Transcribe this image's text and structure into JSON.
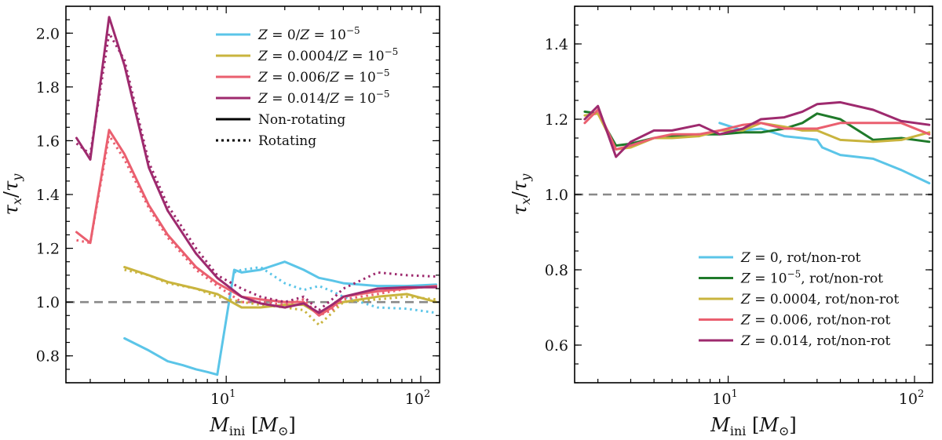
{
  "chart_data": [
    {
      "type": "line",
      "panel": "left",
      "xscale": "log",
      "xlim": [
        1.5,
        125
      ],
      "ylim": [
        0.7,
        2.1
      ],
      "xlabel": "M_ini [M_⊙]",
      "ylabel": "τ_x/τ_y",
      "xticks": [
        {
          "value": 10,
          "base": "10",
          "exp": "1"
        },
        {
          "value": 100,
          "base": "10",
          "exp": "2"
        }
      ],
      "yticks": [
        {
          "value": 0.8,
          "label": "0.8"
        },
        {
          "value": 1.0,
          "label": "1.0"
        },
        {
          "value": 1.2,
          "label": "1.2"
        },
        {
          "value": 1.4,
          "label": "1.4"
        },
        {
          "value": 1.6,
          "label": "1.6"
        },
        {
          "value": 1.8,
          "label": "1.8"
        },
        {
          "value": 2.0,
          "label": "2.0"
        }
      ],
      "reference_line": {
        "y": 1.0,
        "style": "dashed",
        "color": "#888888"
      },
      "legend": {
        "position": "top-right",
        "entries": [
          {
            "label": "Z = 0/Z = 10⁻⁵",
            "color": "#5bc5e8",
            "style": "solid"
          },
          {
            "label": "Z = 0.0004/Z = 10⁻⁵",
            "color": "#c9b43e",
            "style": "solid"
          },
          {
            "label": "Z = 0.006/Z = 10⁻⁵",
            "color": "#ea5f6f",
            "style": "solid"
          },
          {
            "label": "Z = 0.014/Z = 10⁻⁵",
            "color": "#9e2a6e",
            "style": "solid"
          },
          {
            "label": "Non-rotating",
            "color": "#000000",
            "style": "solid"
          },
          {
            "label": "Rotating",
            "color": "#000000",
            "style": "dotted"
          }
        ]
      },
      "series": [
        {
          "name": "Z=0 non-rot",
          "color": "#5bc5e8",
          "style": "solid",
          "x": [
            3,
            4,
            5,
            6,
            7,
            8,
            9,
            11,
            12,
            15,
            20,
            25,
            30,
            35,
            40,
            60,
            85,
            120
          ],
          "y": [
            0.865,
            0.82,
            0.78,
            0.765,
            0.75,
            0.74,
            0.73,
            1.12,
            1.11,
            1.12,
            1.15,
            1.12,
            1.09,
            1.08,
            1.07,
            1.06,
            1.06,
            1.065
          ]
        },
        {
          "name": "Z=0 rot",
          "color": "#5bc5e8",
          "style": "dotted",
          "x": [
            11,
            12,
            15,
            20,
            25,
            30,
            35,
            40,
            60,
            85,
            120
          ],
          "y": [
            1.11,
            1.12,
            1.13,
            1.07,
            1.045,
            1.06,
            1.04,
            1.02,
            0.98,
            0.975,
            0.96
          ]
        },
        {
          "name": "Z=0.0004 non-rot",
          "color": "#c9b43e",
          "style": "solid",
          "x": [
            3,
            4,
            5,
            7,
            9,
            12,
            15,
            20,
            25,
            30,
            35,
            40,
            60,
            85,
            120
          ],
          "y": [
            1.13,
            1.1,
            1.075,
            1.05,
            1.03,
            0.98,
            0.98,
            0.99,
            0.99,
            0.955,
            0.99,
            1.0,
            1.02,
            1.03,
            1.0
          ]
        },
        {
          "name": "Z=0.0004 rot",
          "color": "#c9b43e",
          "style": "dotted",
          "x": [
            3,
            4,
            5,
            7,
            9,
            12,
            15,
            20,
            25,
            30,
            35,
            40,
            60,
            85,
            120
          ],
          "y": [
            1.12,
            1.1,
            1.07,
            1.05,
            1.02,
            1.0,
            0.99,
            0.98,
            0.97,
            0.915,
            0.96,
            1.0,
            1.01,
            1.02,
            1.01
          ]
        },
        {
          "name": "Z=0.006 non-rot",
          "color": "#ea5f6f",
          "style": "solid",
          "x": [
            1.7,
            2,
            2.5,
            3,
            4,
            5,
            7,
            9,
            12,
            15,
            20,
            25,
            30,
            35,
            40,
            60,
            85,
            120
          ],
          "y": [
            1.26,
            1.22,
            1.64,
            1.55,
            1.36,
            1.25,
            1.13,
            1.07,
            1.02,
            1.01,
            1.0,
            1.0,
            0.95,
            0.98,
            1.02,
            1.04,
            1.05,
            1.06
          ]
        },
        {
          "name": "Z=0.006 rot",
          "color": "#ea5f6f",
          "style": "dotted",
          "x": [
            1.7,
            2,
            2.5,
            3,
            4,
            5,
            7,
            9,
            12,
            15,
            20,
            25,
            30,
            35,
            40,
            60,
            85,
            120
          ],
          "y": [
            1.23,
            1.22,
            1.62,
            1.53,
            1.35,
            1.24,
            1.12,
            1.06,
            1.0,
            1.0,
            0.99,
            1.01,
            0.95,
            0.97,
            1.01,
            1.03,
            1.05,
            1.06
          ]
        },
        {
          "name": "Z=0.014 non-rot",
          "color": "#9e2a6e",
          "style": "solid",
          "x": [
            1.7,
            2,
            2.5,
            3,
            4,
            5,
            7,
            9,
            12,
            15,
            20,
            25,
            30,
            35,
            40,
            60,
            85,
            120
          ],
          "y": [
            1.61,
            1.53,
            2.06,
            1.88,
            1.5,
            1.34,
            1.18,
            1.09,
            1.02,
            0.995,
            0.98,
            0.995,
            0.96,
            0.99,
            1.02,
            1.05,
            1.055,
            1.055
          ]
        },
        {
          "name": "Z=0.014 rot",
          "color": "#9e2a6e",
          "style": "dotted",
          "x": [
            1.7,
            2,
            2.5,
            3,
            4,
            5,
            7,
            9,
            12,
            15,
            20,
            25,
            30,
            35,
            40,
            60,
            85,
            120
          ],
          "y": [
            1.59,
            1.55,
            2.0,
            1.9,
            1.52,
            1.36,
            1.2,
            1.1,
            1.05,
            1.02,
            1.0,
            1.02,
            0.97,
            1.01,
            1.05,
            1.11,
            1.1,
            1.095
          ]
        }
      ]
    },
    {
      "type": "line",
      "panel": "right",
      "xscale": "log",
      "xlim": [
        1.5,
        125
      ],
      "ylim": [
        0.5,
        1.5
      ],
      "xlabel": "M_ini [M_⊙]",
      "ylabel": "τ_x/τ_y",
      "xticks": [
        {
          "value": 10,
          "base": "10",
          "exp": "1"
        },
        {
          "value": 100,
          "base": "10",
          "exp": "2"
        }
      ],
      "yticks": [
        {
          "value": 0.6,
          "label": "0.6"
        },
        {
          "value": 0.8,
          "label": "0.8"
        },
        {
          "value": 1.0,
          "label": "1.0"
        },
        {
          "value": 1.2,
          "label": "1.2"
        },
        {
          "value": 1.4,
          "label": "1.4"
        }
      ],
      "reference_line": {
        "y": 1.0,
        "style": "dashed",
        "color": "#888888"
      },
      "legend": {
        "position": "bottom-right",
        "entries": [
          {
            "label": "Z = 0, rot/non-rot",
            "color": "#5bc5e8",
            "style": "solid"
          },
          {
            "label": "Z = 10⁻⁵, rot/non-rot",
            "color": "#1f7a2a",
            "style": "solid"
          },
          {
            "label": "Z = 0.0004, rot/non-rot",
            "color": "#c9b43e",
            "style": "solid"
          },
          {
            "label": "Z = 0.006, rot/non-rot",
            "color": "#ea5f6f",
            "style": "solid"
          },
          {
            "label": "Z = 0.014, rot/non-rot",
            "color": "#9e2a6e",
            "style": "solid"
          }
        ]
      },
      "series": [
        {
          "name": "Z=0 rot/non-rot",
          "color": "#5bc5e8",
          "style": "solid",
          "x": [
            9,
            12,
            15,
            20,
            25,
            30,
            32,
            40,
            60,
            85,
            120
          ],
          "y": [
            1.19,
            1.17,
            1.175,
            1.155,
            1.15,
            1.145,
            1.125,
            1.105,
            1.095,
            1.065,
            1.03
          ]
        },
        {
          "name": "Z=1e-5 rot/non-rot",
          "color": "#1f7a2a",
          "style": "solid",
          "x": [
            1.7,
            2,
            2.5,
            3,
            4,
            5,
            7,
            9,
            12,
            15,
            20,
            25,
            30,
            40,
            60,
            85,
            120
          ],
          "y": [
            1.22,
            1.215,
            1.13,
            1.135,
            1.15,
            1.155,
            1.16,
            1.16,
            1.165,
            1.165,
            1.175,
            1.19,
            1.215,
            1.2,
            1.145,
            1.15,
            1.14
          ]
        },
        {
          "name": "Z=0.0004 rot/non-rot",
          "color": "#c9b43e",
          "style": "solid",
          "x": [
            1.7,
            2,
            2.5,
            3,
            4,
            5,
            7,
            9,
            12,
            15,
            20,
            25,
            30,
            40,
            60,
            85,
            120
          ],
          "y": [
            1.21,
            1.215,
            1.12,
            1.125,
            1.15,
            1.15,
            1.155,
            1.17,
            1.17,
            1.19,
            1.18,
            1.17,
            1.17,
            1.145,
            1.14,
            1.145,
            1.165
          ]
        },
        {
          "name": "Z=0.006 rot/non-rot",
          "color": "#ea5f6f",
          "style": "solid",
          "x": [
            1.7,
            2,
            2.5,
            3,
            4,
            5,
            7,
            9,
            12,
            15,
            20,
            25,
            30,
            40,
            60,
            85,
            120
          ],
          "y": [
            1.19,
            1.225,
            1.12,
            1.13,
            1.15,
            1.16,
            1.16,
            1.17,
            1.185,
            1.19,
            1.175,
            1.175,
            1.175,
            1.19,
            1.19,
            1.19,
            1.16
          ]
        },
        {
          "name": "Z=0.014 rot/non-rot",
          "color": "#9e2a6e",
          "style": "solid",
          "x": [
            1.7,
            2,
            2.5,
            3,
            4,
            5,
            7,
            9,
            12,
            15,
            20,
            25,
            30,
            40,
            60,
            85,
            120
          ],
          "y": [
            1.2,
            1.235,
            1.1,
            1.14,
            1.17,
            1.17,
            1.185,
            1.16,
            1.175,
            1.2,
            1.205,
            1.22,
            1.24,
            1.245,
            1.225,
            1.195,
            1.185
          ]
        }
      ]
    }
  ]
}
